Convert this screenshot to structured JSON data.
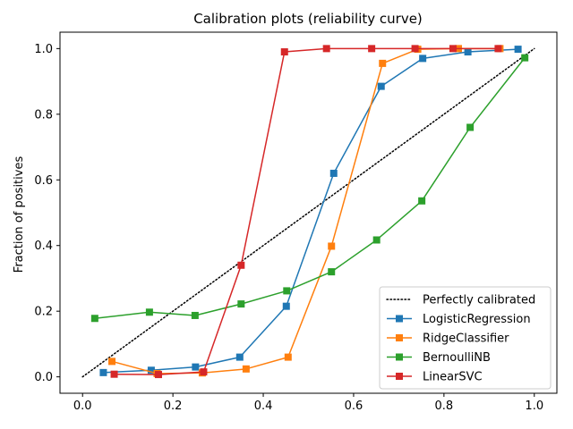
{
  "chart_data": {
    "type": "line",
    "title": "Calibration plots  (reliability curve)",
    "xlabel": "",
    "ylabel": "Fraction of positives",
    "xlim": [
      -0.05,
      1.05
    ],
    "ylim": [
      -0.05,
      1.05
    ],
    "xticks": [
      0.0,
      0.2,
      0.4,
      0.6,
      0.8,
      1.0
    ],
    "yticks": [
      0.0,
      0.2,
      0.4,
      0.6,
      0.8,
      1.0
    ],
    "xtick_labels": [
      "0.0",
      "0.2",
      "0.4",
      "0.6",
      "0.8",
      "1.0"
    ],
    "ytick_labels": [
      "0.0",
      "0.2",
      "0.4",
      "0.6",
      "0.8",
      "1.0"
    ],
    "grid": false,
    "legend_position": "lower-right",
    "reference": {
      "name": "Perfectly calibrated",
      "x": [
        0,
        1
      ],
      "y": [
        0,
        1
      ],
      "color": "#000000",
      "style": "dotted"
    },
    "series": [
      {
        "name": "LogisticRegression",
        "color": "#1f77b4",
        "marker": "square",
        "x": [
          0.046,
          0.152,
          0.25,
          0.348,
          0.451,
          0.556,
          0.661,
          0.753,
          0.853,
          0.964
        ],
        "y": [
          0.013,
          0.02,
          0.03,
          0.06,
          0.215,
          0.62,
          0.885,
          0.97,
          0.99,
          0.998
        ]
      },
      {
        "name": "RidgeClassifier",
        "color": "#ff7f0e",
        "marker": "square",
        "x": [
          0.065,
          0.165,
          0.265,
          0.362,
          0.455,
          0.551,
          0.664,
          0.742,
          0.832,
          0.924
        ],
        "y": [
          0.047,
          0.01,
          0.012,
          0.024,
          0.06,
          0.398,
          0.955,
          0.998,
          1.0,
          1.0
        ]
      },
      {
        "name": "BernoulliNB",
        "color": "#2ca02c",
        "marker": "square",
        "x": [
          0.027,
          0.148,
          0.249,
          0.351,
          0.452,
          0.551,
          0.651,
          0.751,
          0.858,
          0.979
        ],
        "y": [
          0.178,
          0.197,
          0.187,
          0.222,
          0.262,
          0.32,
          0.417,
          0.536,
          0.76,
          0.972
        ]
      },
      {
        "name": "LinearSVC",
        "color": "#d62728",
        "marker": "square",
        "x": [
          0.07,
          0.168,
          0.268,
          0.351,
          0.447,
          0.54,
          0.64,
          0.736,
          0.82,
          0.92
        ],
        "y": [
          0.008,
          0.007,
          0.015,
          0.34,
          0.99,
          1.0,
          1.0,
          1.0,
          1.0,
          1.0
        ]
      }
    ]
  }
}
